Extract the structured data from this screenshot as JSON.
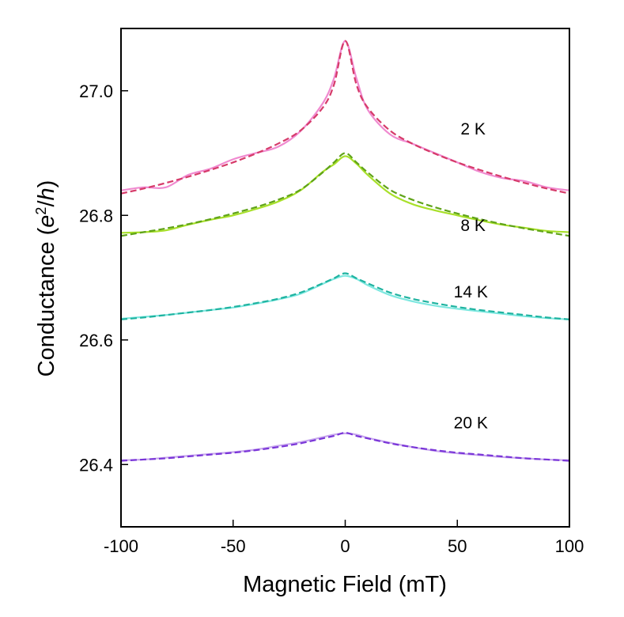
{
  "chart_data": {
    "type": "line",
    "title": "",
    "xlabel": "Magnetic Field (mT)",
    "ylabel_main": "Conductance (",
    "ylabel_e": "e",
    "ylabel_sup": "2",
    "ylabel_slash": "/",
    "ylabel_h": "h",
    "ylabel_close": ")",
    "xlim": [
      -100,
      100
    ],
    "ylim": [
      26.3,
      27.1
    ],
    "xticks": [
      -100,
      -50,
      0,
      50,
      100
    ],
    "xtick_labels": [
      "-100",
      "-50",
      "0",
      "50",
      "100"
    ],
    "yticks": [
      26.4,
      26.6,
      26.8,
      27.0
    ],
    "ytick_labels": [
      "26.4",
      "26.6",
      "26.8",
      "27.0"
    ],
    "grid": false,
    "series": [
      {
        "name": "2 K",
        "label": "2 K",
        "label_pos": {
          "x": 57,
          "y": 26.93
        },
        "data_color": "#f08ad0",
        "fit_color": "#d63b6a",
        "x": [
          -100,
          -90,
          -80,
          -70,
          -60,
          -50,
          -40,
          -30,
          -20,
          -10,
          -5,
          0,
          5,
          10,
          20,
          30,
          40,
          50,
          60,
          70,
          80,
          90,
          100
        ],
        "data": [
          26.84,
          26.845,
          26.845,
          26.865,
          26.875,
          26.89,
          26.9,
          26.91,
          26.935,
          26.98,
          27.02,
          27.08,
          27.02,
          26.97,
          26.93,
          26.915,
          26.9,
          26.885,
          26.87,
          26.86,
          26.855,
          26.845,
          26.84
        ],
        "fit": [
          26.835,
          26.843,
          26.852,
          26.862,
          26.873,
          26.885,
          26.899,
          26.915,
          26.936,
          26.973,
          27.01,
          27.08,
          27.01,
          26.973,
          26.936,
          26.915,
          26.899,
          26.885,
          26.873,
          26.862,
          26.852,
          26.843,
          26.835
        ]
      },
      {
        "name": "8 K",
        "label": "8 K",
        "label_pos": {
          "x": 57,
          "y": 26.775
        },
        "data_color": "#a8e02a",
        "fit_color": "#5fa318",
        "x": [
          -100,
          -90,
          -80,
          -70,
          -60,
          -50,
          -40,
          -30,
          -20,
          -10,
          -5,
          0,
          5,
          10,
          20,
          30,
          40,
          50,
          60,
          70,
          80,
          90,
          100
        ],
        "data": [
          26.772,
          26.773,
          26.776,
          26.785,
          26.793,
          26.8,
          26.81,
          26.822,
          26.84,
          26.87,
          26.882,
          26.895,
          26.883,
          26.865,
          26.835,
          26.818,
          26.808,
          26.8,
          26.792,
          26.785,
          26.78,
          26.775,
          26.773
        ],
        "fit": [
          26.767,
          26.773,
          26.779,
          26.786,
          26.794,
          26.803,
          26.813,
          26.825,
          26.841,
          26.869,
          26.885,
          26.9,
          26.885,
          26.869,
          26.841,
          26.825,
          26.813,
          26.803,
          26.794,
          26.786,
          26.779,
          26.773,
          26.767
        ]
      },
      {
        "name": "14 K",
        "label": "14 K",
        "label_pos": {
          "x": 56,
          "y": 26.668
        },
        "data_color": "#7ee8e0",
        "fit_color": "#1fb3a0",
        "x": [
          -100,
          -90,
          -80,
          -70,
          -60,
          -50,
          -40,
          -30,
          -20,
          -10,
          -5,
          0,
          5,
          10,
          20,
          30,
          40,
          50,
          60,
          70,
          80,
          90,
          100
        ],
        "data": [
          26.634,
          26.637,
          26.64,
          26.644,
          26.648,
          26.652,
          26.658,
          26.665,
          26.674,
          26.69,
          26.698,
          26.703,
          26.698,
          26.688,
          26.672,
          26.662,
          26.655,
          26.65,
          26.646,
          26.642,
          26.638,
          26.635,
          26.633
        ],
        "fit": [
          26.633,
          26.636,
          26.64,
          26.644,
          26.648,
          26.653,
          26.659,
          26.666,
          26.676,
          26.691,
          26.699,
          26.707,
          26.699,
          26.691,
          26.676,
          26.666,
          26.659,
          26.653,
          26.648,
          26.644,
          26.64,
          26.636,
          26.633
        ]
      },
      {
        "name": "20 K",
        "label": "20 K",
        "label_pos": {
          "x": 56,
          "y": 26.458
        },
        "data_color": "#c8a8ee",
        "fit_color": "#7a35d8",
        "x": [
          -100,
          -90,
          -80,
          -70,
          -60,
          -50,
          -40,
          -30,
          -20,
          -10,
          -5,
          0,
          5,
          10,
          20,
          30,
          40,
          50,
          60,
          70,
          80,
          90,
          100
        ],
        "data": [
          26.407,
          26.408,
          26.411,
          26.414,
          26.417,
          26.42,
          26.424,
          26.43,
          26.436,
          26.444,
          26.448,
          26.45,
          26.448,
          26.443,
          26.435,
          26.428,
          26.422,
          26.418,
          26.415,
          26.412,
          26.41,
          26.408,
          26.407
        ],
        "fit": [
          26.406,
          26.408,
          26.41,
          26.413,
          26.416,
          26.419,
          26.423,
          26.428,
          26.434,
          26.442,
          26.446,
          26.451,
          26.446,
          26.442,
          26.434,
          26.428,
          26.423,
          26.419,
          26.416,
          26.413,
          26.41,
          26.408,
          26.406
        ]
      }
    ]
  }
}
